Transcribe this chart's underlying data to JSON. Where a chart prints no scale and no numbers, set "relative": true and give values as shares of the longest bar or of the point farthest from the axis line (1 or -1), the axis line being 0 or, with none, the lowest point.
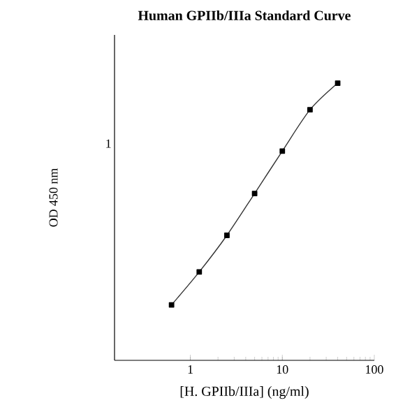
{
  "chart_data": {
    "type": "line",
    "title": "Human GPIIb/IIIa Standard Curve",
    "xlabel": "[H. GPIIb/IIIa] (ng/ml)",
    "ylabel": "OD 450 nm",
    "relative": true,
    "log": "x",
    "xlim": [
      0.15,
      100
    ],
    "xticks": [
      1,
      10,
      100
    ],
    "x": [
      0.625,
      1.25,
      2.5,
      5,
      10,
      20,
      40
    ],
    "series": [
      {
        "color": "#333333",
        "values": [
          0.2,
          0.319,
          0.451,
          0.602,
          0.755,
          0.904,
          1
        ]
      }
    ],
    "marker": "square",
    "line_style": "solid",
    "grid": false,
    "legend": false,
    "annotations": [
      "1"
    ]
  }
}
